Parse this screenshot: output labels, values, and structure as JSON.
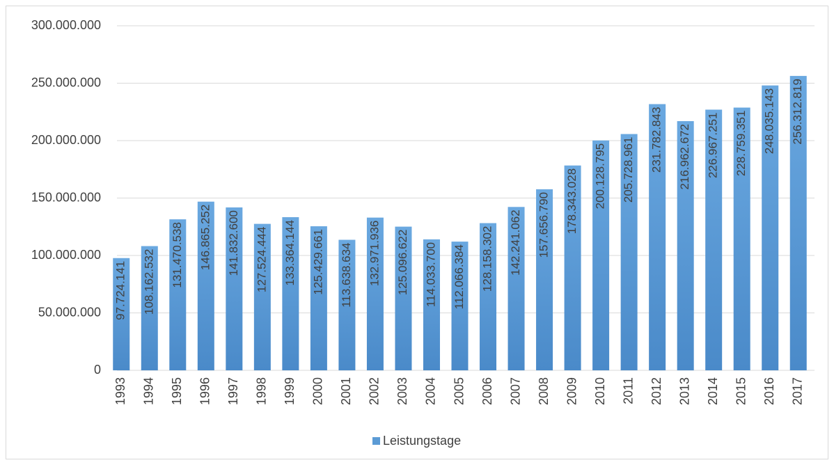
{
  "chart_data": {
    "type": "bar",
    "categories": [
      "1993",
      "1994",
      "1995",
      "1996",
      "1997",
      "1998",
      "1999",
      "2000",
      "2001",
      "2002",
      "2003",
      "2004",
      "2005",
      "2006",
      "2007",
      "2008",
      "2009",
      "2010",
      "2011",
      "2012",
      "2013",
      "2014",
      "2015",
      "2016",
      "2017"
    ],
    "series": [
      {
        "name": "Leistungstage",
        "color": "#5b9bd5",
        "values": [
          97724141,
          108162532,
          131470538,
          146865252,
          141832600,
          127524444,
          133364144,
          125429661,
          113638634,
          132971936,
          125096622,
          114033700,
          112066384,
          128158302,
          142241062,
          157656790,
          178343028,
          200128795,
          205728961,
          231782843,
          216962672,
          226967251,
          228759351,
          248035143,
          256312819
        ],
        "value_labels": [
          "97.724.141",
          "108.162.532",
          "131.470.538",
          "146.865.252",
          "141.832.600",
          "127.524.444",
          "133.364.144",
          "125.429.661",
          "113.638.634",
          "132.971.936",
          "125.096.622",
          "114.033.700",
          "112.066.384",
          "128.158.302",
          "142.241.062",
          "157.656.790",
          "178.343.028",
          "200.128.795",
          "205.728.961",
          "231.782.843",
          "216.962.672",
          "226.967.251",
          "228.759.351",
          "248.035.143",
          "256.312.819"
        ]
      }
    ],
    "ylim": [
      0,
      300000000
    ],
    "yticks": [
      0,
      {
        "value": 50000000,
        "label": "50.000.000"
      },
      {
        "value": 100000000,
        "label": "100.000.000"
      },
      {
        "value": 150000000,
        "label": "150.000.000"
      },
      {
        "value": 200000000,
        "label": "200.000.000"
      },
      {
        "value": 250000000,
        "label": "250.000.000"
      },
      {
        "value": 300000000,
        "label": "300.000.000"
      }
    ],
    "grid": true,
    "legend": "bottom"
  }
}
